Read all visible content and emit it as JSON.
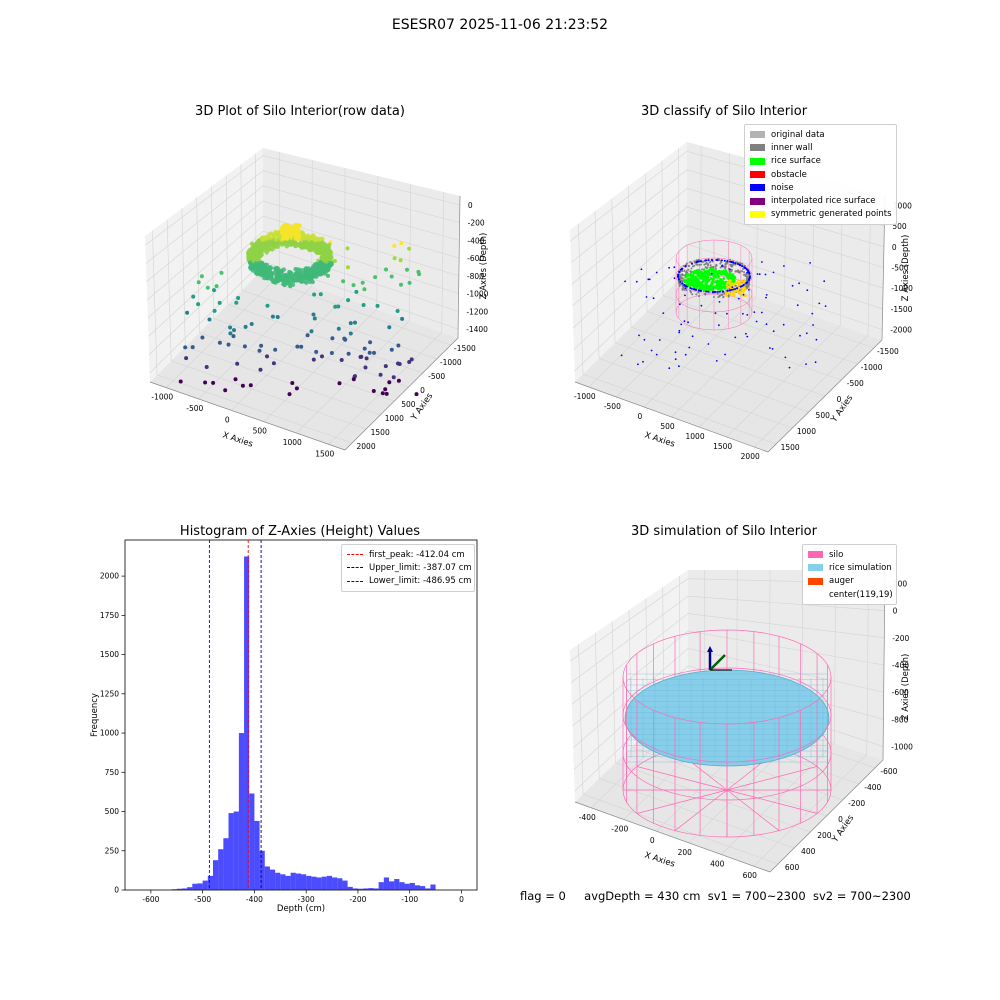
{
  "suptitle": "ESESR07 2025-11-06 21:23:52",
  "panels": {
    "p1": {
      "title": "3D Plot of Silo Interior(row data)",
      "x_ticks": [
        "-1000",
        "-500",
        "0",
        "500",
        "1000",
        "1500"
      ],
      "y_ticks": [
        "-1500",
        "-1000",
        "-500",
        "0",
        "500",
        "1000",
        "1500",
        "2000"
      ],
      "z_ticks": [
        "0",
        "-200",
        "-400",
        "-600",
        "-800",
        "-1000",
        "-1200",
        "-1400"
      ],
      "xlabel": "X Axies",
      "ylabel": "Y Axies",
      "zlabel": "Z Axies (Depth)"
    },
    "p2": {
      "title": "3D classify of Silo Interior",
      "x_ticks": [
        "-1000",
        "-500",
        "0",
        "500",
        "1000",
        "1500",
        "2000"
      ],
      "y_ticks": [
        "-1500",
        "-1000",
        "-500",
        "0",
        "500",
        "1000",
        "1500"
      ],
      "z_ticks": [
        "1000",
        "500",
        "0",
        "-500",
        "-1000",
        "-1500",
        "-2000"
      ],
      "xlabel": "X Axies",
      "ylabel": "Y Axies",
      "zlabel": "Z Axies (Depth)",
      "legend": [
        {
          "label": "original data",
          "color": "#b3b3b3"
        },
        {
          "label": "inner wall",
          "color": "#808080"
        },
        {
          "label": "rice surface",
          "color": "#00ff00"
        },
        {
          "label": "obstacle",
          "color": "#ff0000"
        },
        {
          "label": "noise",
          "color": "#0000ff"
        },
        {
          "label": "interpolated rice surface",
          "color": "#800080"
        },
        {
          "label": "symmetric generated points",
          "color": "#ffff00"
        }
      ]
    },
    "p4": {
      "title": "3D simulation of Silo Interior",
      "x_ticks": [
        "-400",
        "-200",
        "0",
        "200",
        "400",
        "600"
      ],
      "y_ticks": [
        "-600",
        "-400",
        "-200",
        "0",
        "200",
        "400",
        "600"
      ],
      "z_ticks": [
        "200",
        "0",
        "-200",
        "-400",
        "-600",
        "-800",
        "-1000"
      ],
      "xlabel": "X Axies",
      "ylabel": "Y Axies",
      "zlabel": "Z Axies (Depth)",
      "legend": [
        {
          "label": "silo",
          "color": "#ff69b4"
        },
        {
          "label": "rice simulation",
          "color": "#87ceeb"
        },
        {
          "label": "auger",
          "color": "#ff4500"
        },
        {
          "label": "center(119,19)",
          "color": "#ffffff"
        }
      ]
    }
  },
  "chart_data": [
    {
      "type": "scatter",
      "title": "3D Plot of Silo Interior(row data)",
      "xlabel": "X Axies",
      "ylabel": "Y Axies",
      "zlabel": "Z Axies (Depth)",
      "xlim": [
        -1200,
        1700
      ],
      "ylim": [
        -1600,
        2100
      ],
      "zlim": [
        -1450,
        50
      ],
      "colormap": "viridis"
    },
    {
      "type": "scatter",
      "title": "3D classify of Silo Interior",
      "xlabel": "X Axies",
      "ylabel": "Y Axies",
      "zlabel": "Z Axies (Depth)",
      "xlim": [
        -1200,
        2100
      ],
      "ylim": [
        -1600,
        1700
      ],
      "zlim": [
        -2200,
        1100
      ]
    },
    {
      "type": "bar",
      "title": "Histogram of Z-Axies (Height) Values",
      "xlabel": "Depth (cm)",
      "ylabel": "Frequency",
      "xlim": [
        -650,
        30
      ],
      "ylim": [
        0,
        2230
      ],
      "x_ticks": [
        -600,
        -500,
        -400,
        -300,
        -200,
        -100,
        0
      ],
      "y_ticks": [
        0,
        250,
        500,
        750,
        1000,
        1250,
        1500,
        1750,
        2000
      ],
      "bar_color": "#0000ff",
      "bin_start": -560,
      "bin_width": 10,
      "values": [
        5,
        8,
        10,
        18,
        40,
        42,
        60,
        90,
        190,
        260,
        330,
        490,
        500,
        1000,
        2125,
        615,
        440,
        250,
        150,
        130,
        110,
        100,
        90,
        110,
        105,
        100,
        90,
        85,
        80,
        85,
        90,
        80,
        75,
        60,
        20,
        10,
        8,
        10,
        12,
        10,
        50,
        80,
        55,
        70,
        50,
        40,
        45,
        30,
        25,
        10,
        35
      ],
      "lines": [
        {
          "label": "first_peak: -412.04 cm",
          "x": -412.04,
          "color": "#ff0000"
        },
        {
          "label": "Upper_limit: -387.07 cm",
          "x": -387.07,
          "color": "#00008b"
        },
        {
          "label": "Lower_limit: -486.95 cm",
          "x": -486.95,
          "color": "#0000ff"
        }
      ]
    },
    {
      "type": "scatter",
      "title": "3D simulation of Silo Interior",
      "xlabel": "X Axies",
      "ylabel": "Y Axies",
      "zlabel": "Z Axies (Depth)",
      "xlim": [
        -500,
        700
      ],
      "ylim": [
        -650,
        650
      ],
      "zlim": [
        -1050,
        250
      ]
    }
  ],
  "footer": {
    "flag": "flag = 0",
    "avg_depth": "avgDepth = 430 cm",
    "sv1": "sv1 = 700~2300",
    "sv2": "sv2 = 700~2300"
  }
}
